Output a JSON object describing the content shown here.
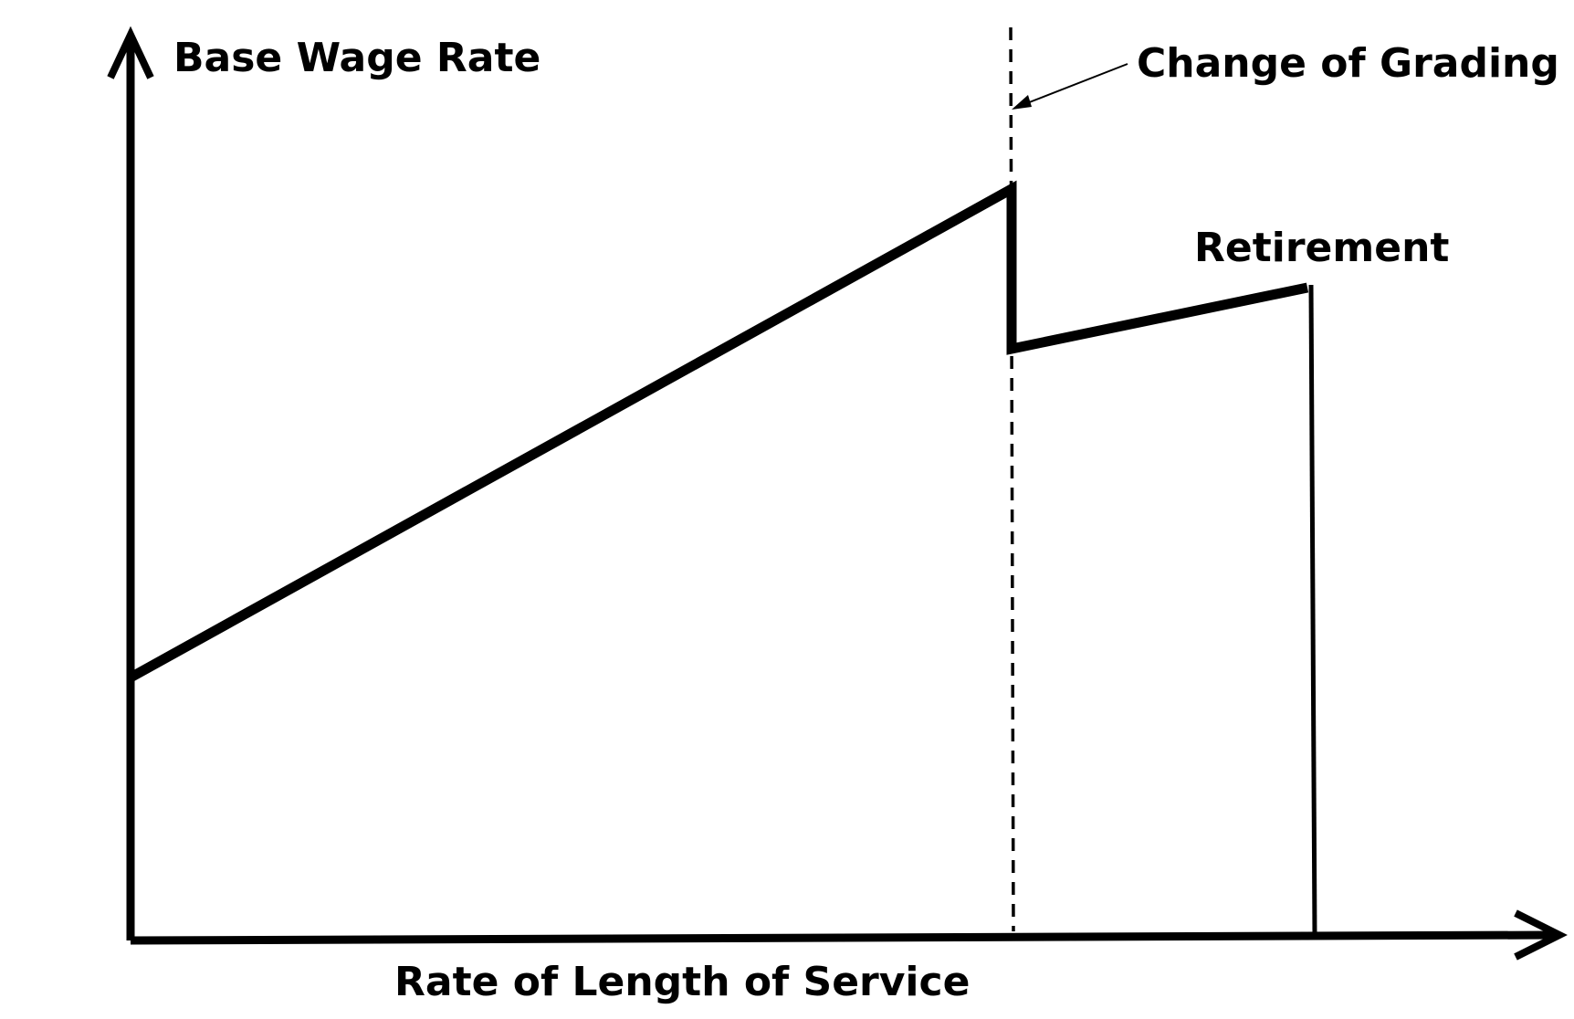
{
  "labels": {
    "y_axis": "Base Wage Rate",
    "x_axis": "Rate of Length of Service",
    "change_of_grading": "Change of Grading",
    "retirement": "Retirement"
  },
  "colors": {
    "ink": "#000000",
    "background": "#ffffff"
  }
}
